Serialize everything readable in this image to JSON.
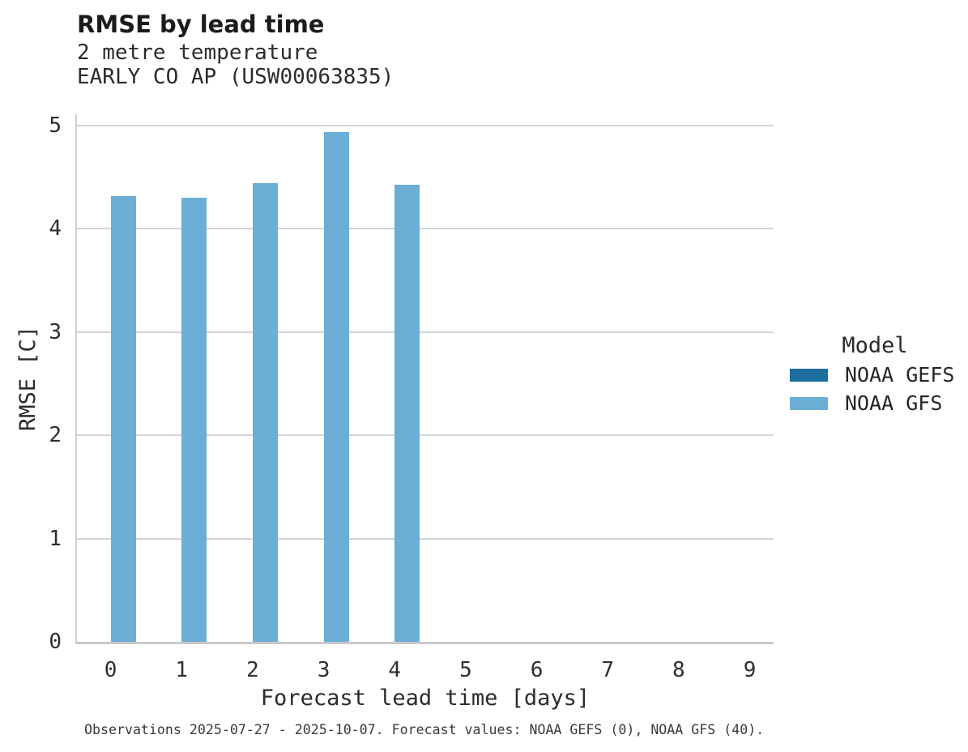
{
  "header": {
    "title": "RMSE by lead time",
    "subtitle_line1": "2 metre temperature",
    "subtitle_line2": "EARLY CO AP (USW00063835)"
  },
  "chart_data": {
    "type": "bar",
    "title": "RMSE by lead time",
    "subtitle": [
      "2 metre temperature",
      "EARLY CO AP (USW00063835)"
    ],
    "xlabel": "Forecast lead time [days]",
    "ylabel": "RMSE [C]",
    "categories": [
      "0",
      "1",
      "2",
      "3",
      "4",
      "5",
      "6",
      "7",
      "8",
      "9"
    ],
    "y_ticks": [
      "0",
      "1",
      "2",
      "3",
      "4",
      "5"
    ],
    "ylim": [
      0,
      5.1
    ],
    "grid": true,
    "legend": {
      "title": "Model",
      "position": "right",
      "entries": [
        {
          "label": "NOAA GEFS",
          "color": "#1d6fa0"
        },
        {
          "label": "NOAA GFS",
          "color": "#6baed6"
        }
      ]
    },
    "series": [
      {
        "name": "NOAA GEFS",
        "color": "#1d6fa0",
        "values": [
          null,
          null,
          null,
          null,
          null,
          null,
          null,
          null,
          null,
          null
        ]
      },
      {
        "name": "NOAA GFS",
        "color": "#6baed6",
        "values": [
          4.31,
          4.3,
          4.44,
          4.93,
          4.42,
          null,
          null,
          null,
          null,
          null
        ]
      }
    ],
    "colors": {
      "gridline": "#d4d4d4",
      "axis_spine": "#cfcfcf",
      "baseline": "#c8c8c8"
    }
  },
  "footer": {
    "caption": "Observations 2025-07-27 - 2025-10-07. Forecast values: NOAA GEFS (0), NOAA GFS (40)."
  }
}
